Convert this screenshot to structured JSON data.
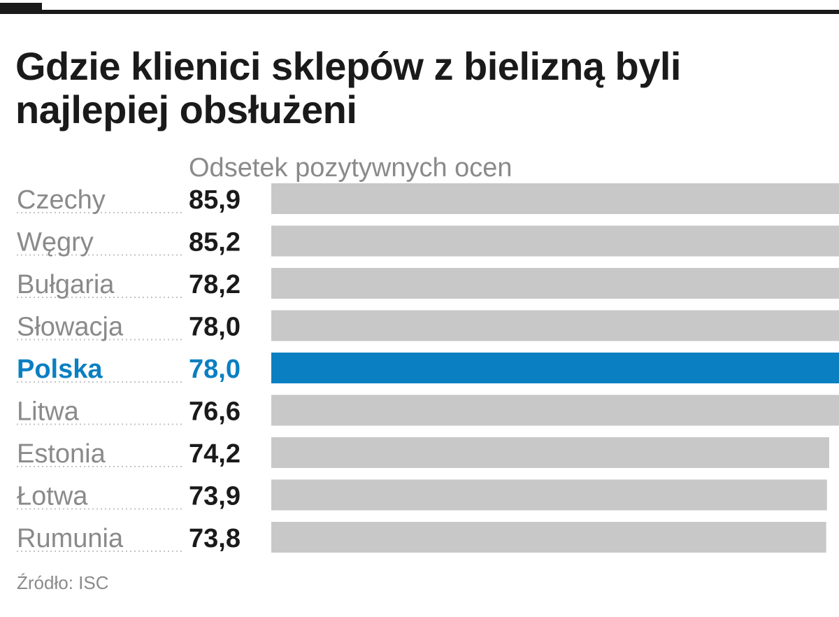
{
  "chart_data": {
    "type": "bar",
    "orientation": "horizontal",
    "title": "Gdzie klienici sklepów z bielizną byli najlepiej obsłużeni",
    "subtitle": "Odsetek pozytywnych ocen",
    "categories": [
      "Czechy",
      "Węgry",
      "Bułgaria",
      "Słowacja",
      "Polska",
      "Litwa",
      "Estonia",
      "Łotwa",
      "Rumunia"
    ],
    "values": [
      85.9,
      85.2,
      78.2,
      78.0,
      78.0,
      76.6,
      74.2,
      73.9,
      73.8
    ],
    "value_labels": [
      "85,9",
      "85,2",
      "78,2",
      "78,0",
      "78,0",
      "76,6",
      "74,2",
      "73,9",
      "73,8"
    ],
    "highlight": "Polska",
    "bar_color": "#c8c8c8",
    "highlight_color": "#0a7fc2",
    "source": "Źródło: ISC"
  }
}
